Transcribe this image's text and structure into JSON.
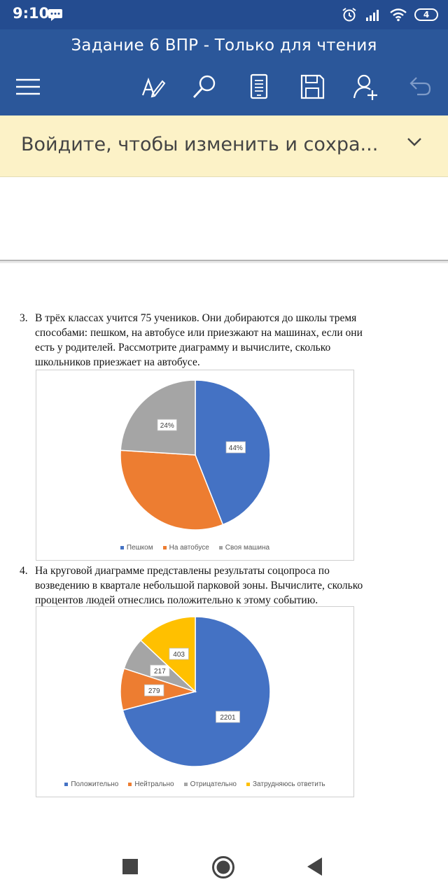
{
  "status_bar": {
    "time": "9:10",
    "battery": "4"
  },
  "app_bar": {
    "title": "Задание 6 ВПР - Только для чтения",
    "icons": [
      "menu-icon",
      "draw-pen-icon",
      "search-icon",
      "mobile-view-icon",
      "save-icon",
      "share-person-icon",
      "undo-icon"
    ]
  },
  "banner": {
    "text": "Войдите, чтобы изменить и сохра..."
  },
  "questions": [
    {
      "number": "3.",
      "lines": [
        "В трёх классах учится 75 учеников. Они добираются до школы тремя",
        "способами: пешком, на автобусе или приезжают на машинах, если они",
        "есть у родителей. Рассмотрите диаграмму и вычислите, сколько",
        "школьников приезжает на автобусе."
      ]
    },
    {
      "number": "4.",
      "lines": [
        "На круговой диаграмме представлены результаты соцопроса по",
        "возведению в квартале небольшой парковой зоны. Вычислите, сколько",
        "процентов людей отнеслись положительно к этому событию."
      ]
    }
  ],
  "colors": {
    "blue": "#4472c4",
    "orange": "#ed7d31",
    "gray": "#a5a5a5",
    "yellow": "#ffc000"
  },
  "chart_data": [
    {
      "type": "pie",
      "categories": [
        "Пешком",
        "На автобусе",
        "Своя машина"
      ],
      "values": [
        44,
        32,
        24
      ],
      "data_labels": [
        "44%",
        "",
        "24%"
      ],
      "colors": [
        "#4472c4",
        "#ed7d31",
        "#a5a5a5"
      ],
      "legend_position": "bottom"
    },
    {
      "type": "pie",
      "categories": [
        "Положительно",
        "Нейтрально",
        "Отрицательно",
        "Затрудняюсь ответить"
      ],
      "values": [
        2201,
        279,
        217,
        403
      ],
      "data_labels": [
        "2201",
        "279",
        "217",
        "403"
      ],
      "colors": [
        "#4472c4",
        "#ed7d31",
        "#a5a5a5",
        "#ffc000"
      ],
      "legend_position": "bottom"
    }
  ]
}
